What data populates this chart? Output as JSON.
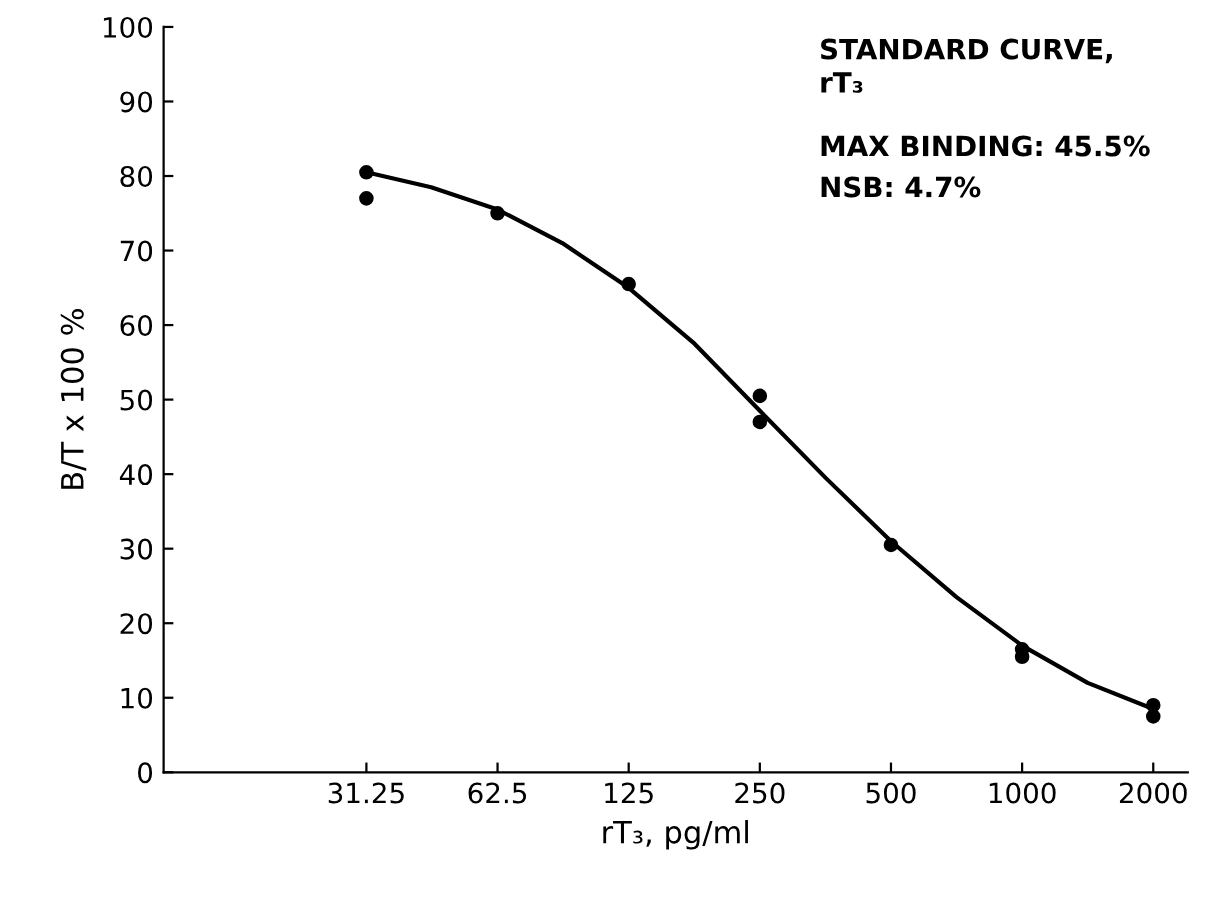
{
  "chart_data": {
    "type": "scatter",
    "title": "STANDARD CURVE,\nrT₃",
    "xlabel": "rT₃, pg/ml",
    "ylabel": "B/T x 100 %",
    "annotations": [
      "MAX BINDING: 45.5%",
      "NSB: 4.7%"
    ],
    "log": "x",
    "xlim": [
      10.7,
      2400
    ],
    "xticks": [
      31.25,
      62.5,
      125,
      250,
      500,
      1000,
      2000
    ],
    "ylim": [
      0,
      100
    ],
    "yticks": [
      0,
      10,
      20,
      30,
      40,
      50,
      60,
      70,
      80,
      90,
      100
    ],
    "grid": false,
    "legend": false,
    "series": [
      {
        "color": "#000000",
        "marker": "circle",
        "x": [
          31.25,
          31.25,
          62.5,
          125,
          250,
          250,
          500,
          1000,
          1000,
          2000,
          2000
        ],
        "values": [
          80.5,
          77,
          75,
          65.5,
          50.5,
          47,
          30.5,
          16.5,
          15.5,
          9,
          7.5
        ]
      },
      {
        "type": "line",
        "color": "#000000",
        "marker": "none",
        "line_style": "solid",
        "x": [
          31.25,
          44,
          62.5,
          88,
          125,
          177,
          250,
          354,
          500,
          707,
          1000,
          1414,
          2000
        ],
        "values": [
          80.5,
          78.5,
          75.5,
          71,
          65,
          57.5,
          48.5,
          39.5,
          31,
          23.5,
          17,
          12,
          8.5
        ]
      }
    ]
  }
}
